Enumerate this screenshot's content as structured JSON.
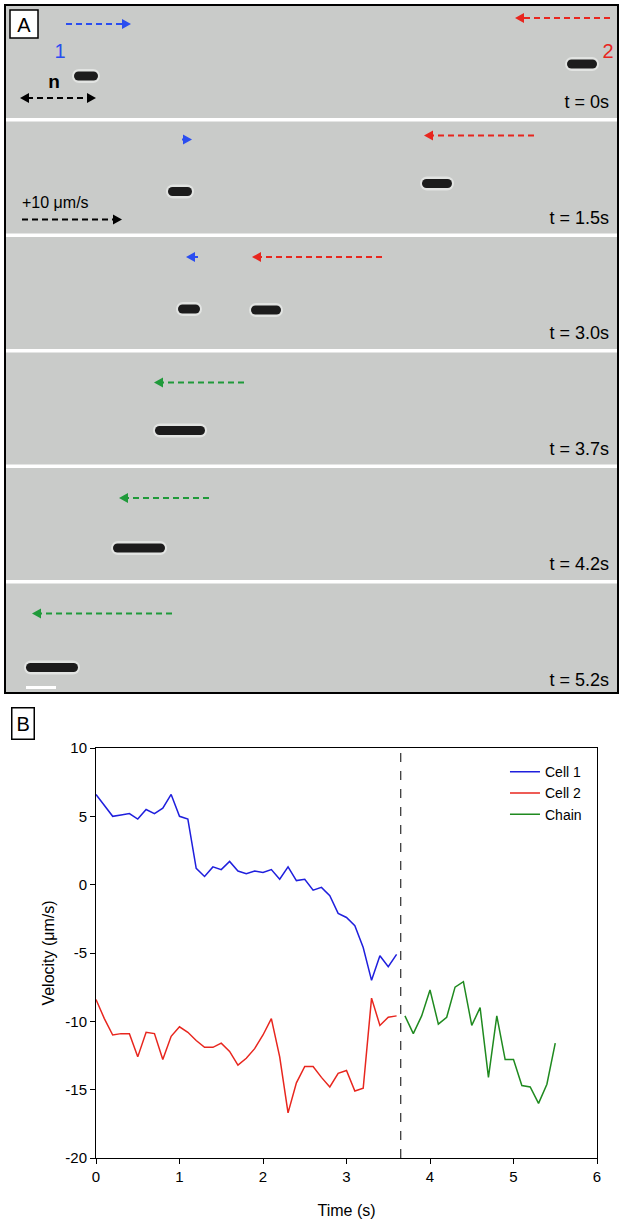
{
  "panel_a": {
    "label": "A",
    "n_label": "n",
    "scale": {
      "value": 10,
      "label": "+10 μm/s"
    },
    "frames": [
      {
        "time": "t = 0s",
        "arrows": [
          {
            "label": "1",
            "color": "#2a4df0",
            "velocity": 6.5
          },
          {
            "label": "2",
            "color": "#e8261e",
            "velocity": -9.5
          }
        ]
      },
      {
        "time": "t = 1.5s",
        "arrows": [
          {
            "color": "#2a4df0",
            "velocity": 1
          },
          {
            "color": "#e8261e",
            "velocity": -11
          }
        ]
      },
      {
        "time": "t = 3.0s",
        "arrows": [
          {
            "color": "#2a4df0",
            "velocity": -1.2
          },
          {
            "color": "#e8261e",
            "velocity": -13
          }
        ]
      },
      {
        "time": "t = 3.7s",
        "arrows": [
          {
            "color": "#1f9a3a",
            "velocity": -9
          }
        ]
      },
      {
        "time": "t = 4.2s",
        "arrows": [
          {
            "color": "#1f9a3a",
            "velocity": -9
          }
        ]
      },
      {
        "time": "t = 5.2s",
        "arrows": [
          {
            "color": "#1f9a3a",
            "velocity": -14
          }
        ]
      }
    ]
  },
  "chart_data": {
    "type": "line",
    "label": "B",
    "x_label": "Time (s)",
    "y_label": "Velocity (μm/s)",
    "xlim": [
      0,
      6
    ],
    "xticks": [
      0,
      1,
      2,
      3,
      4,
      5,
      6
    ],
    "ylim": [
      -20,
      10
    ],
    "yticks": [
      -20,
      -15,
      -10,
      -5,
      0,
      5,
      10
    ],
    "grid": false,
    "legend": "upper right",
    "vline": 3.65,
    "series": [
      {
        "name": "Cell 1",
        "color": "#1f1fdd",
        "x": [
          0,
          0.1,
          0.2,
          0.3,
          0.4,
          0.5,
          0.6,
          0.7,
          0.8,
          0.9,
          1.0,
          1.1,
          1.2,
          1.3,
          1.4,
          1.5,
          1.6,
          1.7,
          1.8,
          1.9,
          2.0,
          2.1,
          2.2,
          2.3,
          2.4,
          2.5,
          2.6,
          2.7,
          2.8,
          2.9,
          3.0,
          3.1,
          3.2,
          3.3,
          3.4,
          3.5,
          3.6
        ],
        "values": [
          6.6,
          5.8,
          5.0,
          5.1,
          5.2,
          4.8,
          5.5,
          5.2,
          5.6,
          6.6,
          5.0,
          4.8,
          1.2,
          0.6,
          1.3,
          1.1,
          1.7,
          1.0,
          0.8,
          1.0,
          0.9,
          1.1,
          0.4,
          1.3,
          0.3,
          0.4,
          -0.4,
          -0.2,
          -0.8,
          -2.1,
          -2.4,
          -3.0,
          -4.6,
          -7.0,
          -5.2,
          -6.0,
          -5.1
        ]
      },
      {
        "name": "Cell 2",
        "color": "#e8261e",
        "x": [
          0,
          0.1,
          0.2,
          0.3,
          0.4,
          0.5,
          0.6,
          0.7,
          0.8,
          0.9,
          1.0,
          1.1,
          1.2,
          1.3,
          1.4,
          1.5,
          1.6,
          1.7,
          1.8,
          1.9,
          2.0,
          2.1,
          2.2,
          2.3,
          2.4,
          2.5,
          2.6,
          2.7,
          2.8,
          2.9,
          3.0,
          3.1,
          3.2,
          3.3,
          3.4,
          3.5,
          3.6
        ],
        "values": [
          -8.4,
          -9.8,
          -11.0,
          -10.9,
          -10.9,
          -12.6,
          -10.8,
          -10.9,
          -12.8,
          -11.1,
          -10.4,
          -10.8,
          -11.4,
          -11.9,
          -11.9,
          -11.6,
          -12.2,
          -13.2,
          -12.7,
          -12.0,
          -11.0,
          -9.8,
          -12.6,
          -16.7,
          -14.5,
          -13.3,
          -13.3,
          -14.1,
          -14.8,
          -13.8,
          -13.6,
          -15.1,
          -14.9,
          -8.3,
          -10.3,
          -9.7,
          -9.6
        ]
      },
      {
        "name": "Chain",
        "color": "#1f8a1f",
        "x": [
          3.7,
          3.8,
          3.9,
          4.0,
          4.1,
          4.2,
          4.3,
          4.4,
          4.5,
          4.6,
          4.7,
          4.8,
          4.9,
          5.0,
          5.1,
          5.2,
          5.3,
          5.4,
          5.5
        ],
        "values": [
          -9.6,
          -10.9,
          -9.6,
          -7.7,
          -10.2,
          -9.7,
          -7.5,
          -7.1,
          -10.3,
          -9.0,
          -14.1,
          -9.6,
          -12.8,
          -12.8,
          -14.7,
          -14.8,
          -16.0,
          -14.6,
          -11.6
        ]
      }
    ]
  }
}
